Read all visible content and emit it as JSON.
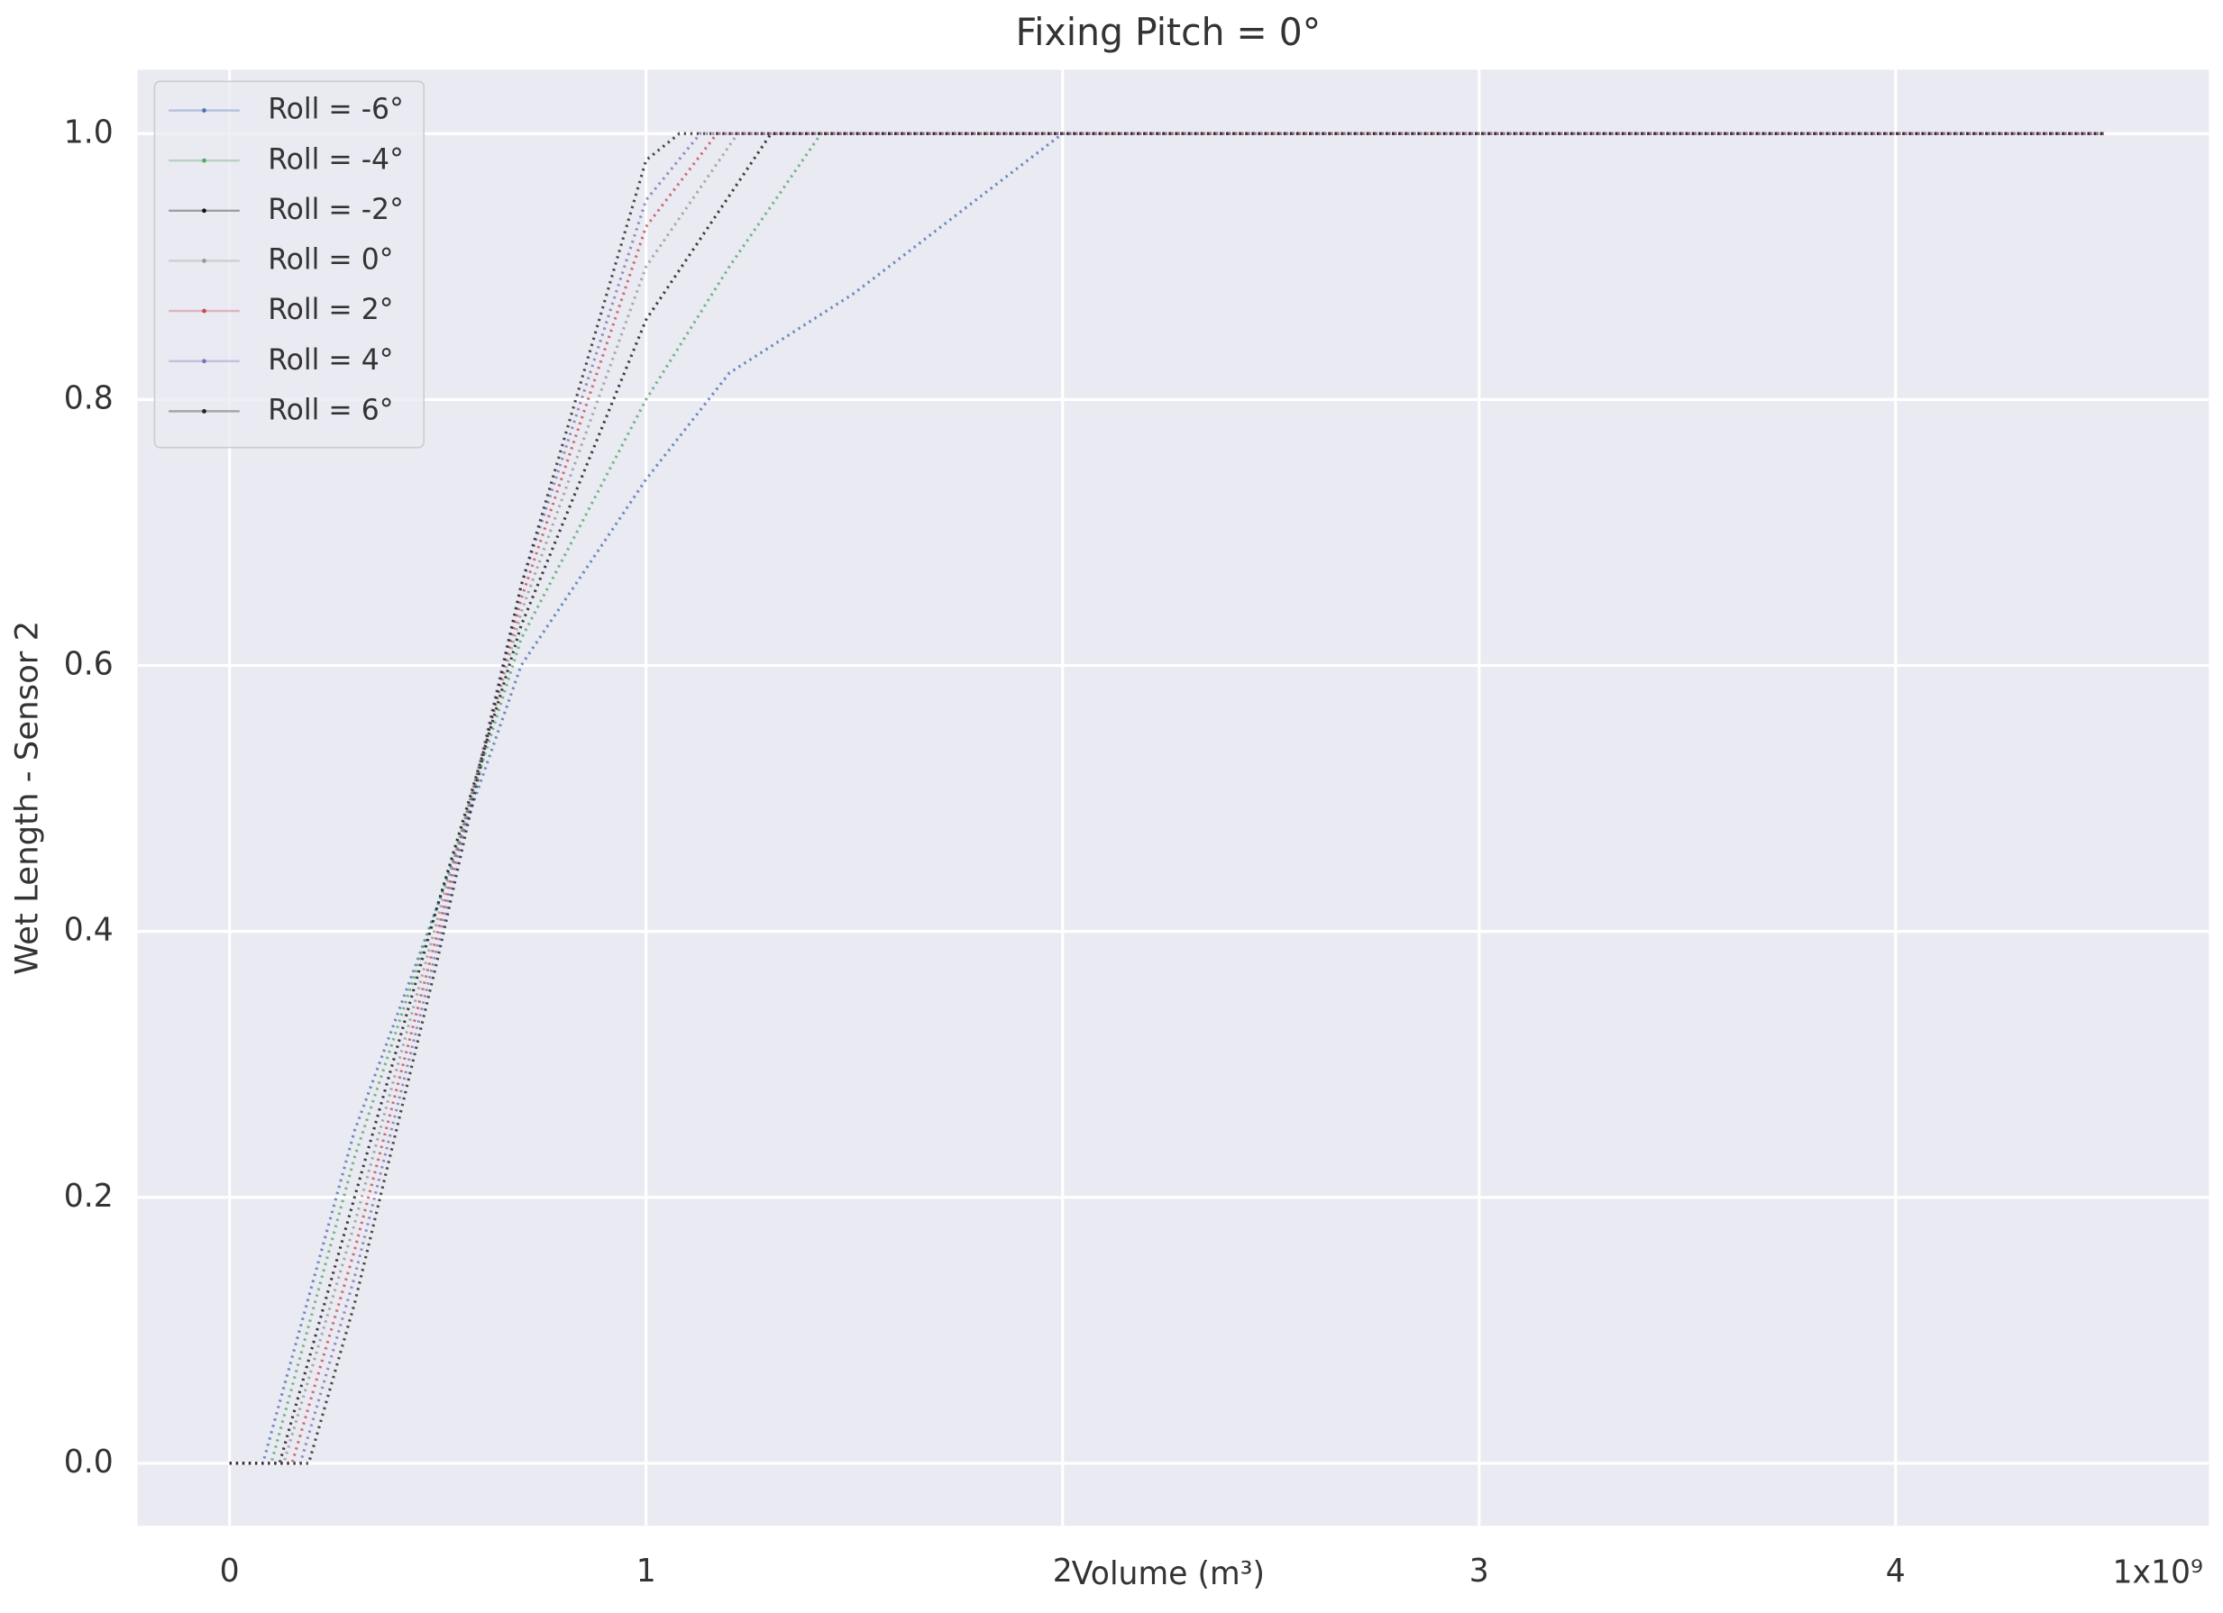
{
  "chart_data": {
    "type": "line",
    "title": "Fixing Pitch = 0°",
    "x_label": "Volume (m³)",
    "y_label": "Wet Length - Sensor 2",
    "x_offset_text": "1x10⁹",
    "xlim": [
      -0.221,
      4.752
    ],
    "ylim": [
      -0.047,
      1.048
    ],
    "xticks": [
      0,
      1,
      2,
      3,
      4
    ],
    "yticks": [
      {
        "value": 0,
        "label": "0.0"
      },
      0.2,
      0.4,
      0.6,
      0.8,
      {
        "value": 1,
        "label": "1.0"
      }
    ],
    "grid": true,
    "legend": "upper left",
    "series": [
      {
        "name": "Roll = -6°",
        "color": "#4c72b0",
        "x": [
          0,
          0.08,
          0.3,
          0.5,
          0.7,
          1.0,
          1.2,
          1.5,
          2.0,
          4.5
        ],
        "values": [
          0,
          0,
          0.25,
          0.42,
          0.6,
          0.74,
          0.82,
          0.88,
          1.0,
          1.0
        ]
      },
      {
        "name": "Roll = -4°",
        "color": "#55a868",
        "x": [
          0,
          0.1,
          0.3,
          0.5,
          0.7,
          1.0,
          1.2,
          1.42,
          4.5
        ],
        "values": [
          0,
          0,
          0.23,
          0.42,
          0.62,
          0.8,
          0.9,
          1.0,
          1.0
        ]
      },
      {
        "name": "Roll = -2°",
        "color": "#111111",
        "x": [
          0,
          0.12,
          0.3,
          0.5,
          0.7,
          1.0,
          1.3,
          4.5
        ],
        "values": [
          0,
          0,
          0.2,
          0.42,
          0.63,
          0.86,
          1.0,
          1.0
        ]
      },
      {
        "name": "Roll = 0°",
        "color": "#999999",
        "x": [
          0,
          0.13,
          0.3,
          0.5,
          0.7,
          1.0,
          1.22,
          4.5
        ],
        "values": [
          0,
          0,
          0.18,
          0.41,
          0.64,
          0.9,
          1.0,
          1.0
        ]
      },
      {
        "name": "Roll = 2°",
        "color": "#c44e52",
        "x": [
          0,
          0.15,
          0.3,
          0.5,
          0.7,
          1.0,
          1.17,
          4.5
        ],
        "values": [
          0,
          0,
          0.16,
          0.4,
          0.65,
          0.93,
          1.0,
          1.0
        ]
      },
      {
        "name": "Roll = 4°",
        "color": "#8172b2",
        "x": [
          0,
          0.17,
          0.3,
          0.5,
          0.7,
          1.0,
          1.13,
          4.5
        ],
        "values": [
          0,
          0,
          0.14,
          0.39,
          0.66,
          0.95,
          1.0,
          1.0
        ]
      },
      {
        "name": "Roll = 6°",
        "color": "#222222",
        "x": [
          0,
          0.19,
          0.3,
          0.5,
          0.7,
          1.0,
          1.08,
          4.5
        ],
        "values": [
          0,
          0,
          0.12,
          0.38,
          0.66,
          0.98,
          1.0,
          1.0
        ]
      }
    ]
  }
}
